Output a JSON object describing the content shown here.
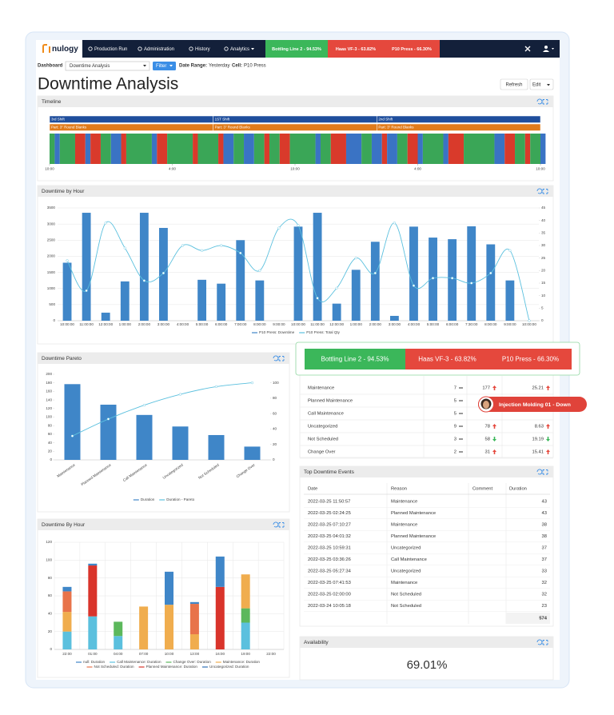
{
  "nav": {
    "logo": "nulogy",
    "items": [
      "Production Run",
      "Administration",
      "History",
      "Analytics"
    ],
    "status_tiles": [
      {
        "label": "Bottling Line 2 - 94.53%",
        "color": "#3bb75a"
      },
      {
        "label": "Haas VF-3 - 63.82%",
        "color": "#e5483d"
      },
      {
        "label": "P10 Press - 66.30%",
        "color": "#e5483d"
      }
    ]
  },
  "toolbar": {
    "dashboard_label": "Dashboard",
    "dashboard_value": "Downtime Analysis",
    "filter": "Filter",
    "date_range_label": "Date Range:",
    "date_range_value": "Yesterday",
    "cell_label": "Cell:",
    "cell_value": "P10 Press"
  },
  "page_title": "Downtime Analysis",
  "actions": [
    "Refresh",
    "Edit"
  ],
  "timeline": {
    "title": "Timeline",
    "xlim": [
      0,
      24
    ],
    "xticks": [
      {
        "value": 0,
        "label": "10:00"
      },
      {
        "value": 6,
        "label": "4:00"
      },
      {
        "value": 12,
        "label": "10:00"
      },
      {
        "value": 18,
        "label": "4:00"
      },
      {
        "value": 24,
        "label": "10:00"
      }
    ],
    "shifts": [
      {
        "label": "3rd Shift",
        "start": 0,
        "end": 8
      },
      {
        "label": "1ST Shift",
        "start": 8,
        "end": 16
      },
      {
        "label": "2nd Shift",
        "start": 16,
        "end": 24
      }
    ],
    "parts": [
      {
        "label": "Part: 3\" Round Blanks",
        "start": 0,
        "end": 8
      },
      {
        "label": "Part: 3\" Round Blanks",
        "start": 8,
        "end": 16
      },
      {
        "label": "Part: 3\" Round Blanks",
        "start": 16,
        "end": 24
      }
    ],
    "segments": [
      {
        "color": "#3aa657",
        "hours": 0.25
      },
      {
        "color": "#3a73c4",
        "hours": 0.25
      },
      {
        "color": "#3aa657",
        "hours": 0.75
      },
      {
        "color": "#d93a2b",
        "hours": 0.5
      },
      {
        "color": "#3a73c4",
        "hours": 0.25
      },
      {
        "color": "#d93a2b",
        "hours": 0.5
      },
      {
        "color": "#3aa657",
        "hours": 0.5
      },
      {
        "color": "#3a73c4",
        "hours": 0.5
      },
      {
        "color": "#d93a2b",
        "hours": 0.25
      },
      {
        "color": "#3aa657",
        "hours": 1.25
      },
      {
        "color": "#3a73c4",
        "hours": 0.25
      },
      {
        "color": "#d93a2b",
        "hours": 0.5
      },
      {
        "color": "#3aa657",
        "hours": 1.25
      },
      {
        "color": "#d93a2b",
        "hours": 0.25
      },
      {
        "color": "#3aa657",
        "hours": 1
      },
      {
        "color": "#d93a2b",
        "hours": 0.25
      },
      {
        "color": "#3a73c4",
        "hours": 0.5
      },
      {
        "color": "#3aa657",
        "hours": 0.5
      },
      {
        "color": "#3a73c4",
        "hours": 0.5
      },
      {
        "color": "#3aa657",
        "hours": 0.5
      },
      {
        "color": "#d93a2b",
        "hours": 0.25
      },
      {
        "color": "#3aa657",
        "hours": 0.5
      },
      {
        "color": "#d93a2b",
        "hours": 0.5
      },
      {
        "color": "#3aa657",
        "hours": 1.25
      },
      {
        "color": "#3a73c4",
        "hours": 0.25
      },
      {
        "color": "#3aa657",
        "hours": 0.5
      },
      {
        "color": "#d93a2b",
        "hours": 0.75
      },
      {
        "color": "#3a73c4",
        "hours": 0.75
      },
      {
        "color": "#3aa657",
        "hours": 0.5
      },
      {
        "color": "#3a73c4",
        "hours": 0.5
      },
      {
        "color": "#d93a2b",
        "hours": 0.25
      },
      {
        "color": "#3a73c4",
        "hours": 0.5
      },
      {
        "color": "#3aa657",
        "hours": 0.5
      },
      {
        "color": "#d93a2b",
        "hours": 0.5
      },
      {
        "color": "#3a73c4",
        "hours": 0.25
      },
      {
        "color": "#3aa657",
        "hours": 1
      },
      {
        "color": "#3a73c4",
        "hours": 0.25
      },
      {
        "color": "#d93a2b",
        "hours": 0.75
      },
      {
        "color": "#3aa657",
        "hours": 1.5
      },
      {
        "color": "#3a73c4",
        "hours": 0.5
      },
      {
        "color": "#d93a2b",
        "hours": 0.5
      },
      {
        "color": "#3aa657",
        "hours": 0.5
      },
      {
        "color": "#d93a2b",
        "hours": 0.25
      },
      {
        "color": "#3aa657",
        "hours": 0.5
      },
      {
        "color": "#3a73c4",
        "hours": 0.25
      }
    ]
  },
  "downtime_by_hour": {
    "title": "Downtime by Hour",
    "chart": {
      "type": "bar_line",
      "categories": [
        "10:00:00",
        "11:00:00",
        "12:00:00",
        "1:00:00",
        "2:00:00",
        "3:00:00",
        "4:00:00",
        "5:00:00",
        "6:00:00",
        "7:00:00",
        "8:00:00",
        "9:00:00",
        "10:00:00",
        "11:00:00",
        "12:00:00",
        "1:00:00",
        "2:00:00",
        "3:00:00",
        "4:00:00",
        "5:00:00",
        "6:00:00",
        "7:30:00",
        "8:00:00",
        "9:00:00",
        "10:00:00"
      ],
      "series": [
        {
          "name": "P10 Press: Downtime",
          "color": "#3f86c8",
          "type": "bar",
          "values": [
            1800,
            3350,
            250,
            1220,
            3350,
            2880,
            null,
            1270,
            1150,
            2500,
            1250,
            null,
            2920,
            3350,
            530,
            1580,
            2450,
            150,
            2920,
            2580,
            2530,
            2930,
            2370,
            1250,
            null
          ]
        },
        {
          "name": "P10 Press: Total Qty",
          "color": "#5bc0de",
          "type": "line",
          "axis": "y2",
          "values": [
            24,
            12,
            39,
            29,
            16,
            19,
            30,
            28,
            30,
            27,
            20,
            37,
            38,
            9,
            13,
            25,
            19,
            39,
            14,
            17,
            17,
            15,
            19,
            28,
            0
          ]
        }
      ],
      "ylim": [
        0,
        3500
      ],
      "yticks": [
        0,
        500,
        1000,
        1500,
        2000,
        2500,
        3000,
        3500
      ],
      "y2lim": [
        0,
        45
      ],
      "y2ticks": [
        0,
        5,
        10,
        15,
        20,
        25,
        30,
        35,
        40,
        45
      ],
      "grid": true
    }
  },
  "downtime_pareto": {
    "title": "Downtime Pareto",
    "chart": {
      "type": "bar_line",
      "categories": [
        "Maintenance",
        "Planned Maintenance",
        "Call Maintenance",
        "Uncategorized",
        "Not Scheduled",
        "Change Over"
      ],
      "series": [
        {
          "name": "Duration",
          "color": "#3f86c8",
          "type": "bar",
          "values": [
            177,
            129,
            105,
            78,
            58,
            31
          ]
        },
        {
          "name": "Duration - Pareto",
          "color": "#5bc0de",
          "type": "line",
          "axis": "y2",
          "values": [
            31,
            53,
            71,
            85,
            95,
            100
          ]
        }
      ],
      "ylim": [
        0,
        200
      ],
      "yticks": [
        0,
        20,
        40,
        60,
        80,
        100,
        120,
        140,
        160,
        180,
        200
      ],
      "y2lim": [
        0,
        111
      ],
      "y2ticks": [
        0,
        20,
        40,
        60,
        80,
        100
      ],
      "grid": false
    }
  },
  "downtime_by_hour_stacked": {
    "title": "Downtime By Hour",
    "chart": {
      "type": "stacked_bar",
      "categories": [
        "22:00",
        "01:00",
        "04:00",
        "07:00",
        "10:00",
        "13:00",
        "16:00",
        "19:00",
        "22:00"
      ],
      "series": [
        {
          "name": "null: Duration",
          "color": "#3f86c8",
          "values": [
            5,
            2,
            null,
            null,
            37,
            2,
            34,
            null,
            null
          ]
        },
        {
          "name": "Call Maintenance: Duration",
          "color": "#5bc0de",
          "values": [
            20,
            37,
            15,
            null,
            null,
            null,
            null,
            30,
            null
          ]
        },
        {
          "name": "Change Over: Duration",
          "color": "#5cb85c",
          "values": [
            null,
            null,
            16,
            null,
            null,
            null,
            null,
            16,
            null
          ]
        },
        {
          "name": "Maintenance: Duration",
          "color": "#f0ad4e",
          "values": [
            22,
            null,
            null,
            48,
            50,
            17,
            null,
            38,
            null
          ]
        },
        {
          "name": "Not Scheduled: Duration",
          "color": "#e8734a",
          "values": [
            23,
            null,
            null,
            null,
            null,
            34,
            null,
            null,
            null
          ]
        },
        {
          "name": "Planned Maintenance: Duration",
          "color": "#d9342b",
          "values": [
            null,
            57,
            null,
            null,
            null,
            null,
            70,
            null,
            null
          ]
        },
        {
          "name": "Uncategorized: Duration",
          "color": "#2f6fb5",
          "values": [
            null,
            null,
            null,
            null,
            null,
            null,
            null,
            null,
            null
          ]
        }
      ],
      "ylim": [
        0,
        120
      ],
      "yticks": [
        0,
        20,
        40,
        60,
        80,
        100,
        120
      ],
      "grid": true
    }
  },
  "reasons": {
    "rows": [
      {
        "reason": "Maintenance",
        "count": 7,
        "count_trend": "flat",
        "duration": 177,
        "duration_trend": "up",
        "percent": 25.21,
        "percent_trend": "up"
      },
      {
        "reason": "Planned Maintenance",
        "count": 5,
        "count_trend": "flat",
        "duration": null,
        "duration_trend": null,
        "percent": null,
        "percent_trend": null
      },
      {
        "reason": "Call Maintenance",
        "count": 5,
        "count_trend": "flat",
        "duration": null,
        "duration_trend": null,
        "percent": null,
        "percent_trend": null
      },
      {
        "reason": "Uncategorized",
        "count": 9,
        "count_trend": "flat",
        "duration": 78,
        "duration_trend": "up",
        "percent": 8.63,
        "percent_trend": "up"
      },
      {
        "reason": "Not Scheduled",
        "count": 3,
        "count_trend": "flat",
        "duration": 58,
        "duration_trend": "down",
        "percent": 19.19,
        "percent_trend": "down"
      },
      {
        "reason": "Change Over",
        "count": 2,
        "count_trend": "flat",
        "duration": 31,
        "duration_trend": "up",
        "percent": 15.41,
        "percent_trend": "up"
      }
    ]
  },
  "tooltip": "Injection Molding 01 - Down",
  "top_events": {
    "title": "Top Downtime Events",
    "headers": [
      "Date",
      "Reason",
      "Comment",
      "Duration"
    ],
    "rows": [
      {
        "date": "2022-03-25 11:50:57",
        "reason": "Maintenance",
        "duration": 43
      },
      {
        "date": "2022-03-25 02:24:25",
        "reason": "Planned Maintenance",
        "duration": 43
      },
      {
        "date": "2022-03-25 07:10:27",
        "reason": "Maintenance",
        "duration": 38
      },
      {
        "date": "2022-03-25 04:01:32",
        "reason": "Planned Maintenance",
        "duration": 38
      },
      {
        "date": "2022-03-25 10:59:31",
        "reason": "Uncategorized",
        "duration": 37
      },
      {
        "date": "2022-03-25 03:36:26",
        "reason": "Call Maintenance",
        "duration": 37
      },
      {
        "date": "2022-03-25 05:27:34",
        "reason": "Uncategorized",
        "duration": 33
      },
      {
        "date": "2022-03-25 07:41:53",
        "reason": "Maintenance",
        "duration": 32
      },
      {
        "date": "2022-03-25 02:00:00",
        "reason": "Not Scheduled",
        "duration": 32
      },
      {
        "date": "2022-03-24 10:05:18",
        "reason": "Not Scheduled",
        "duration": 23
      }
    ],
    "total": 574
  },
  "availability": {
    "title": "Availability",
    "value": "69.01%"
  }
}
